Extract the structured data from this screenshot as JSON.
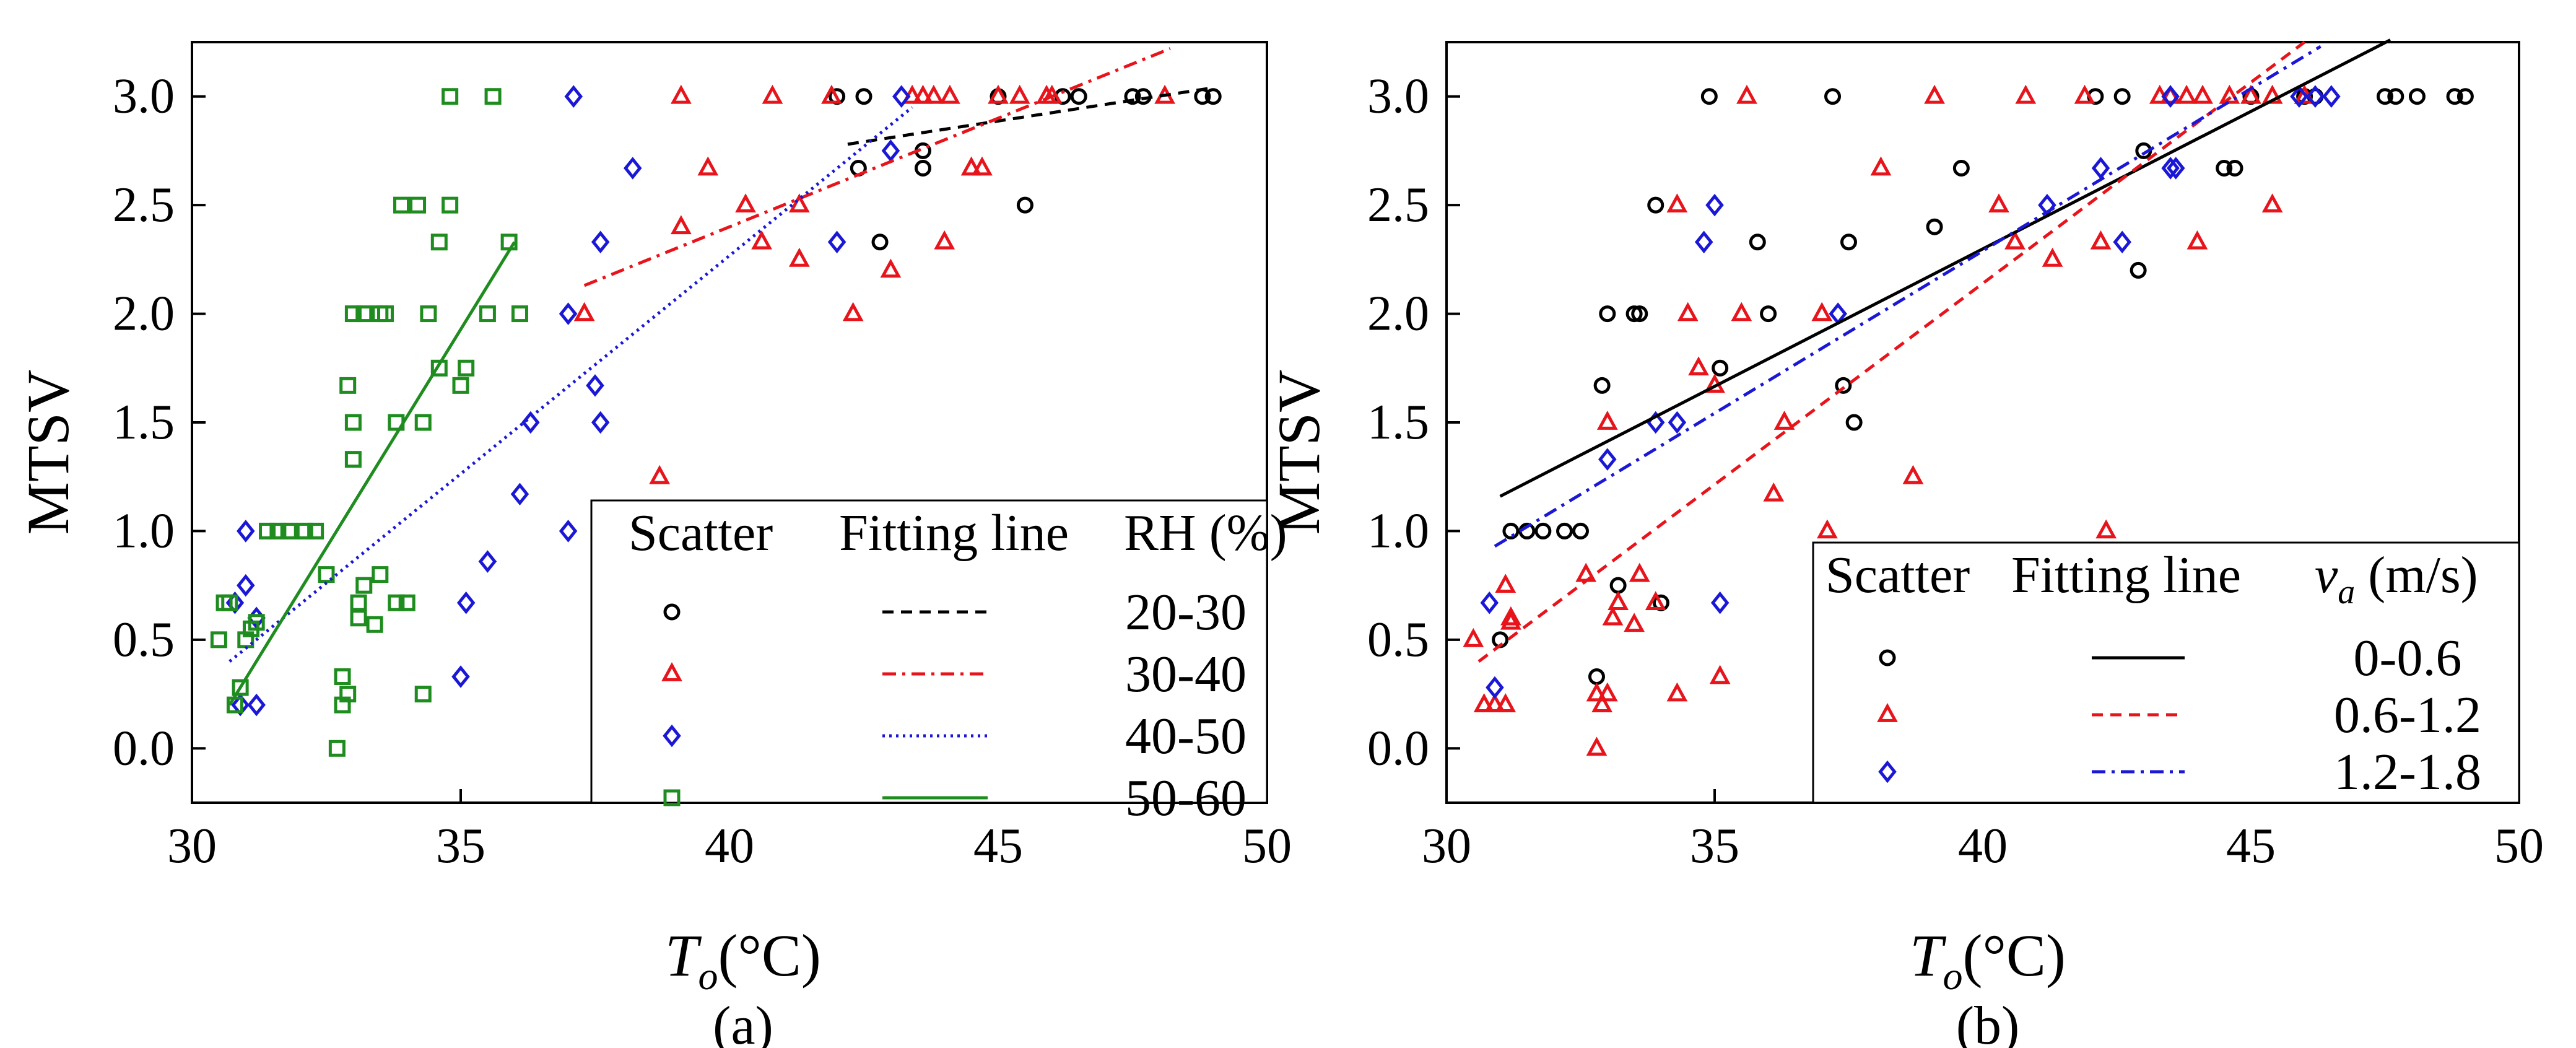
{
  "chart_data": [
    {
      "type": "scatter",
      "panel_label": "(a)",
      "xlabel_main": "T",
      "xlabel_sub": "o",
      "xlabel_unit": "(°C)",
      "ylabel": "MTSV",
      "xlim": [
        30,
        50
      ],
      "ylim": [
        -0.25,
        3.25
      ],
      "xticks": [
        30,
        35,
        40,
        45,
        50
      ],
      "yticks": [
        0.0,
        0.5,
        1.0,
        1.5,
        2.0,
        2.5,
        3.0
      ],
      "legend": {
        "position": "bottom-right",
        "headers": [
          "Scatter",
          "Fitting line",
          "RH (%)"
        ]
      },
      "series": [
        {
          "name": "20-30",
          "marker": "circle",
          "color": "#000000",
          "line_style": "dashed",
          "fit_line": {
            "x": [
              42.2,
              49.0
            ],
            "y": [
              2.78,
              3.04
            ]
          },
          "points": [
            [
              42,
              3.0
            ],
            [
              42.5,
              3.0
            ],
            [
              42.4,
              2.67
            ],
            [
              42.8,
              2.33
            ],
            [
              43.6,
              2.75
            ],
            [
              43.6,
              2.67
            ],
            [
              45.0,
              3.0
            ],
            [
              45.5,
              2.5
            ],
            [
              46.2,
              3.0
            ],
            [
              46.5,
              3.0
            ],
            [
              47.5,
              3.0
            ],
            [
              47.7,
              3.0
            ],
            [
              48.8,
              3.0
            ],
            [
              49.0,
              3.0
            ]
          ]
        },
        {
          "name": "30-40",
          "marker": "triangle",
          "color": "#e8141b",
          "line_style": "dashdot",
          "fit_line": {
            "x": [
              37.3,
              48.2
            ],
            "y": [
              2.13,
              3.22
            ]
          },
          "points": [
            [
              37.3,
              2.0
            ],
            [
              38.7,
              1.25
            ],
            [
              39.1,
              3.0
            ],
            [
              39.1,
              2.4
            ],
            [
              39.6,
              2.67
            ],
            [
              40.3,
              2.5
            ],
            [
              40.6,
              2.33
            ],
            [
              40.8,
              3.0
            ],
            [
              41.3,
              2.5
            ],
            [
              41.3,
              2.25
            ],
            [
              41.9,
              3.0
            ],
            [
              42.3,
              2.0
            ],
            [
              43.0,
              2.2
            ],
            [
              43.4,
              3.0
            ],
            [
              43.6,
              3.0
            ],
            [
              43.8,
              3.0
            ],
            [
              44.0,
              2.33
            ],
            [
              44.1,
              3.0
            ],
            [
              44.5,
              2.67
            ],
            [
              44.7,
              2.67
            ],
            [
              45.0,
              3.0
            ],
            [
              45.4,
              3.0
            ],
            [
              45.9,
              3.0
            ],
            [
              46.0,
              3.0
            ],
            [
              48.1,
              3.0
            ]
          ]
        },
        {
          "name": "40-50",
          "marker": "diamond",
          "color": "#1a17d6",
          "line_style": "dotted",
          "fit_line": {
            "x": [
              30.7,
              43.4
            ],
            "y": [
              0.4,
              2.95
            ]
          },
          "points": [
            [
              30.8,
              0.67
            ],
            [
              30.9,
              0.2
            ],
            [
              31.0,
              0.75
            ],
            [
              31.0,
              1.0
            ],
            [
              31.2,
              0.6
            ],
            [
              31.2,
              0.2
            ],
            [
              35.0,
              0.33
            ],
            [
              35.1,
              0.67
            ],
            [
              35.5,
              0.86
            ],
            [
              36.1,
              1.17
            ],
            [
              36.3,
              1.5
            ],
            [
              37.0,
              1.0
            ],
            [
              37.0,
              2.0
            ],
            [
              37.1,
              3.0
            ],
            [
              37.5,
              1.67
            ],
            [
              37.6,
              1.5
            ],
            [
              37.6,
              2.33
            ],
            [
              38.2,
              2.67
            ],
            [
              42.0,
              2.33
            ],
            [
              43.0,
              2.75
            ],
            [
              43.2,
              3.0
            ]
          ]
        },
        {
          "name": "50-60",
          "marker": "square",
          "color": "#1e8c1e",
          "line_style": "solid",
          "fit_line": {
            "x": [
              30.7,
              36.0
            ],
            "y": [
              0.2,
              2.33
            ]
          },
          "points": [
            [
              30.5,
              0.5
            ],
            [
              30.6,
              0.67
            ],
            [
              30.7,
              0.67
            ],
            [
              30.8,
              0.2
            ],
            [
              30.9,
              0.28
            ],
            [
              31.0,
              0.5
            ],
            [
              31.1,
              0.55
            ],
            [
              31.2,
              0.58
            ],
            [
              31.4,
              1.0
            ],
            [
              31.6,
              1.0
            ],
            [
              31.8,
              1.0
            ],
            [
              32.1,
              1.0
            ],
            [
              32.3,
              1.0
            ],
            [
              32.5,
              0.8
            ],
            [
              32.7,
              0.0
            ],
            [
              32.8,
              0.2
            ],
            [
              32.8,
              0.33
            ],
            [
              32.9,
              0.25
            ],
            [
              32.9,
              1.67
            ],
            [
              33.0,
              1.5
            ],
            [
              33.0,
              1.33
            ],
            [
              33.0,
              2.0
            ],
            [
              33.1,
              0.6
            ],
            [
              33.1,
              0.67
            ],
            [
              33.2,
              2.0
            ],
            [
              33.2,
              0.75
            ],
            [
              33.4,
              0.57
            ],
            [
              33.5,
              0.8
            ],
            [
              33.5,
              2.0
            ],
            [
              33.6,
              2.0
            ],
            [
              33.8,
              1.5
            ],
            [
              33.8,
              0.67
            ],
            [
              33.9,
              2.5
            ],
            [
              34.0,
              0.67
            ],
            [
              34.2,
              2.5
            ],
            [
              34.3,
              1.5
            ],
            [
              34.3,
              0.25
            ],
            [
              34.4,
              2.0
            ],
            [
              34.6,
              2.33
            ],
            [
              34.6,
              1.75
            ],
            [
              34.8,
              3.0
            ],
            [
              34.8,
              2.5
            ],
            [
              35.0,
              1.67
            ],
            [
              35.1,
              1.75
            ],
            [
              35.5,
              2.0
            ],
            [
              35.6,
              3.0
            ],
            [
              35.9,
              2.33
            ],
            [
              36.1,
              2.0
            ]
          ]
        }
      ]
    },
    {
      "type": "scatter",
      "panel_label": "(b)",
      "xlabel_main": "T",
      "xlabel_sub": "o",
      "xlabel_unit": "(°C)",
      "ylabel": "MTSV",
      "xlim": [
        30,
        50
      ],
      "ylim": [
        -0.25,
        3.25
      ],
      "xticks": [
        30,
        35,
        40,
        45,
        50
      ],
      "yticks": [
        0.0,
        0.5,
        1.0,
        1.5,
        2.0,
        2.5,
        3.0
      ],
      "legend": {
        "position": "bottom-right",
        "headers": [
          "Scatter",
          "Fitting line"
        ],
        "header_var_main": "v",
        "header_var_sub": "a",
        "header_var_unit": " (m/s)"
      },
      "series": [
        {
          "name": "0-0.6",
          "marker": "circle",
          "color": "#000000",
          "line_style": "solid",
          "fit_line": {
            "x": [
              31.0,
              47.6
            ],
            "y": [
              1.16,
              3.26
            ]
          },
          "points": [
            [
              31.0,
              0.5
            ],
            [
              31.2,
              1.0
            ],
            [
              31.5,
              1.0
            ],
            [
              31.8,
              1.0
            ],
            [
              32.2,
              1.0
            ],
            [
              32.5,
              1.0
            ],
            [
              32.8,
              0.33
            ],
            [
              32.9,
              1.67
            ],
            [
              33.0,
              2.0
            ],
            [
              33.2,
              0.75
            ],
            [
              33.5,
              2.0
            ],
            [
              33.6,
              2.0
            ],
            [
              33.9,
              2.5
            ],
            [
              34.0,
              0.67
            ],
            [
              34.9,
              3.0
            ],
            [
              35.1,
              1.75
            ],
            [
              35.8,
              2.33
            ],
            [
              36.0,
              2.0
            ],
            [
              37.2,
              3.0
            ],
            [
              37.4,
              1.67
            ],
            [
              37.5,
              2.33
            ],
            [
              37.6,
              1.5
            ],
            [
              39.1,
              2.4
            ],
            [
              39.6,
              2.67
            ],
            [
              42.1,
              3.0
            ],
            [
              42.6,
              3.0
            ],
            [
              42.9,
              2.2
            ],
            [
              43.0,
              2.75
            ],
            [
              44.5,
              2.67
            ],
            [
              44.7,
              2.67
            ],
            [
              45.0,
              3.0
            ],
            [
              46.0,
              3.0
            ],
            [
              46.2,
              3.0
            ],
            [
              47.5,
              3.0
            ],
            [
              47.7,
              3.0
            ],
            [
              48.1,
              3.0
            ],
            [
              48.8,
              3.0
            ],
            [
              49.0,
              3.0
            ]
          ]
        },
        {
          "name": "0.6-1.2",
          "marker": "triangle",
          "color": "#e8141b",
          "line_style": "dashed",
          "fit_line": {
            "x": [
              30.6,
              46.0
            ],
            "y": [
              0.4,
              3.25
            ]
          },
          "points": [
            [
              30.5,
              0.5
            ],
            [
              30.7,
              0.2
            ],
            [
              30.9,
              0.2
            ],
            [
              31.1,
              0.2
            ],
            [
              31.1,
              0.75
            ],
            [
              31.2,
              0.6
            ],
            [
              31.2,
              0.58
            ],
            [
              32.6,
              0.8
            ],
            [
              32.8,
              0.25
            ],
            [
              32.8,
              0.0
            ],
            [
              32.9,
              0.2
            ],
            [
              33.0,
              0.25
            ],
            [
              33.0,
              1.5
            ],
            [
              33.1,
              0.6
            ],
            [
              33.2,
              0.67
            ],
            [
              33.5,
              0.57
            ],
            [
              33.6,
              0.8
            ],
            [
              33.9,
              0.67
            ],
            [
              34.3,
              2.5
            ],
            [
              34.3,
              0.25
            ],
            [
              34.5,
              2.0
            ],
            [
              34.7,
              1.75
            ],
            [
              35.0,
              1.67
            ],
            [
              35.1,
              0.33
            ],
            [
              35.5,
              2.0
            ],
            [
              35.6,
              3.0
            ],
            [
              36.1,
              1.17
            ],
            [
              36.3,
              1.5
            ],
            [
              37.0,
              2.0
            ],
            [
              37.1,
              1.0
            ],
            [
              38.1,
              2.67
            ],
            [
              38.7,
              1.25
            ],
            [
              39.1,
              3.0
            ],
            [
              40.3,
              2.5
            ],
            [
              40.6,
              2.33
            ],
            [
              40.8,
              3.0
            ],
            [
              41.3,
              2.25
            ],
            [
              41.9,
              3.0
            ],
            [
              42.2,
              2.33
            ],
            [
              42.3,
              1.0
            ],
            [
              43.3,
              3.0
            ],
            [
              43.5,
              3.0
            ],
            [
              43.8,
              3.0
            ],
            [
              44.0,
              2.33
            ],
            [
              44.1,
              3.0
            ],
            [
              44.6,
              3.0
            ],
            [
              45.0,
              3.0
            ],
            [
              45.4,
              2.5
            ],
            [
              45.4,
              3.0
            ],
            [
              46.0,
              3.0
            ]
          ]
        },
        {
          "name": "1.2-1.8",
          "marker": "diamond",
          "color": "#1a17d6",
          "line_style": "dashdot",
          "fit_line": {
            "x": [
              30.9,
              46.3
            ],
            "y": [
              0.93,
              3.23
            ]
          },
          "points": [
            [
              30.8,
              0.67
            ],
            [
              30.9,
              0.28
            ],
            [
              33.0,
              1.33
            ],
            [
              33.9,
              1.5
            ],
            [
              34.3,
              1.5
            ],
            [
              34.8,
              2.33
            ],
            [
              35.0,
              2.5
            ],
            [
              35.1,
              0.67
            ],
            [
              37.3,
              2.0
            ],
            [
              41.2,
              2.5
            ],
            [
              42.2,
              2.67
            ],
            [
              42.6,
              2.33
            ],
            [
              43.5,
              3.0
            ],
            [
              43.5,
              2.67
            ],
            [
              43.6,
              2.67
            ],
            [
              45.9,
              3.0
            ],
            [
              46.2,
              3.0
            ],
            [
              46.5,
              3.0
            ]
          ]
        }
      ]
    }
  ]
}
